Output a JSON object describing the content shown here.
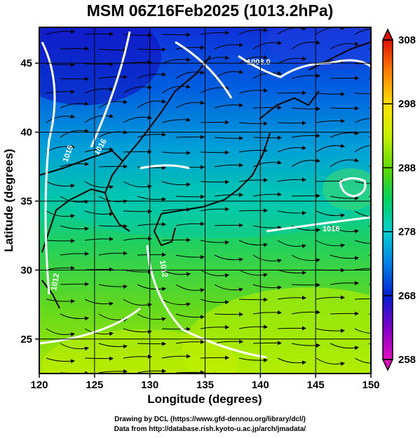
{
  "title": "MSM 06Z16Feb2025 (1013.2hPa)",
  "axes": {
    "xlabel": "Longitude (degrees)",
    "ylabel": "Latitude  (degrees)",
    "xlim": [
      120,
      150
    ],
    "ylim": [
      22.5,
      47.6
    ],
    "xticks": [
      "120",
      "125",
      "130",
      "135",
      "140",
      "145",
      "150"
    ],
    "yticks": [
      "25",
      "30",
      "35",
      "40",
      "45"
    ]
  },
  "colorbar": {
    "ticks": [
      "308",
      "298",
      "288",
      "278",
      "268",
      "258"
    ],
    "range": [
      258,
      308
    ]
  },
  "contour_labels": [
    "1008.0",
    "1016",
    "1016",
    "1012",
    "1016",
    "1012"
  ],
  "colors": {
    "cold": "#0030c8",
    "mid": "#00c8c8",
    "warm": "#80e000",
    "hot": "#ffff00",
    "contour": "#ffffff",
    "streamline": "#000000"
  },
  "credits": {
    "line1": "Drawing by DCL (https://www.gfd-dennou.org/library/dcl/)",
    "line2": "Data from http://database.rish.kyoto-u.ac.jp/arch/jmadata/"
  }
}
